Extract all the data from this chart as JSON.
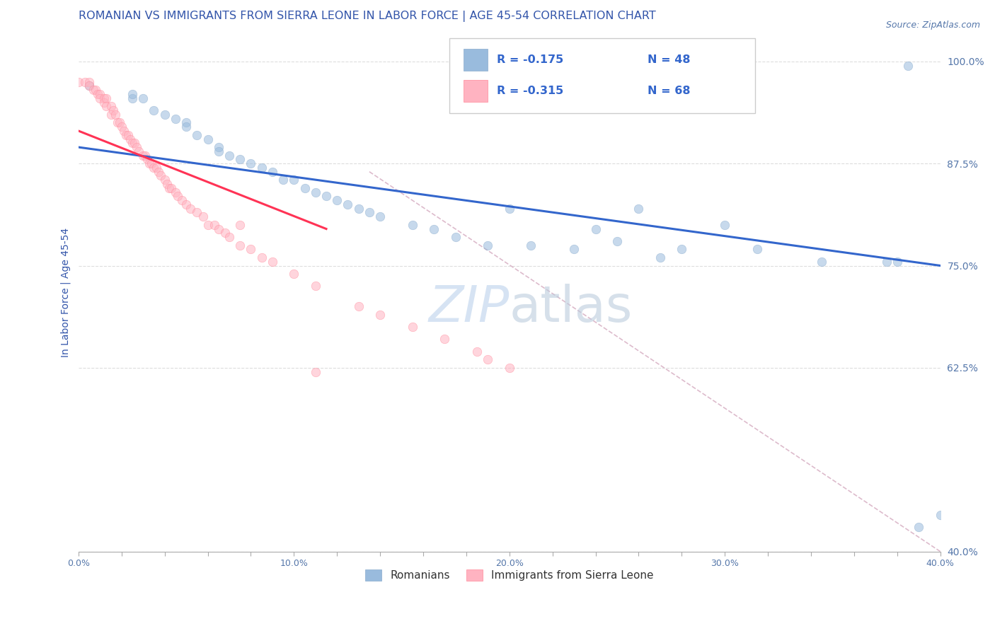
{
  "title": "ROMANIAN VS IMMIGRANTS FROM SIERRA LEONE IN LABOR FORCE | AGE 45-54 CORRELATION CHART",
  "source_text": "Source: ZipAtlas.com",
  "ylabel": "In Labor Force | Age 45-54",
  "xlim": [
    0.0,
    0.4
  ],
  "ylim": [
    0.4,
    1.035
  ],
  "xtick_labels": [
    "0.0%",
    "",
    "",
    "",
    "",
    "10.0%",
    "",
    "",
    "",
    "",
    "20.0%",
    "",
    "",
    "",
    "",
    "30.0%",
    "",
    "",
    "",
    "",
    "40.0%"
  ],
  "xtick_values": [
    0.0,
    0.02,
    0.04,
    0.06,
    0.08,
    0.1,
    0.12,
    0.14,
    0.16,
    0.18,
    0.2,
    0.22,
    0.24,
    0.26,
    0.28,
    0.3,
    0.32,
    0.34,
    0.36,
    0.38,
    0.4
  ],
  "ytick_labels": [
    "40.0%",
    "62.5%",
    "75.0%",
    "87.5%",
    "100.0%"
  ],
  "ytick_values": [
    0.4,
    0.625,
    0.75,
    0.875,
    1.0
  ],
  "blue_scatter_x": [
    0.005,
    0.025,
    0.025,
    0.03,
    0.035,
    0.04,
    0.045,
    0.05,
    0.05,
    0.055,
    0.06,
    0.065,
    0.065,
    0.07,
    0.075,
    0.08,
    0.085,
    0.09,
    0.095,
    0.1,
    0.105,
    0.11,
    0.115,
    0.12,
    0.125,
    0.13,
    0.135,
    0.14,
    0.155,
    0.165,
    0.175,
    0.19,
    0.21,
    0.23,
    0.25,
    0.27,
    0.315,
    0.345,
    0.375,
    0.385,
    0.39,
    0.2,
    0.24,
    0.26,
    0.28,
    0.3,
    0.38,
    0.4
  ],
  "blue_scatter_y": [
    0.97,
    0.955,
    0.96,
    0.955,
    0.94,
    0.935,
    0.93,
    0.925,
    0.92,
    0.91,
    0.905,
    0.895,
    0.89,
    0.885,
    0.88,
    0.875,
    0.87,
    0.865,
    0.855,
    0.855,
    0.845,
    0.84,
    0.835,
    0.83,
    0.825,
    0.82,
    0.815,
    0.81,
    0.8,
    0.795,
    0.785,
    0.775,
    0.775,
    0.77,
    0.78,
    0.76,
    0.77,
    0.755,
    0.755,
    0.995,
    0.43,
    0.82,
    0.795,
    0.82,
    0.77,
    0.8,
    0.755,
    0.445
  ],
  "pink_scatter_x": [
    0.0,
    0.003,
    0.005,
    0.005,
    0.007,
    0.008,
    0.009,
    0.01,
    0.01,
    0.012,
    0.012,
    0.013,
    0.013,
    0.015,
    0.015,
    0.016,
    0.017,
    0.018,
    0.019,
    0.02,
    0.021,
    0.022,
    0.023,
    0.024,
    0.025,
    0.026,
    0.027,
    0.028,
    0.03,
    0.031,
    0.032,
    0.033,
    0.034,
    0.035,
    0.036,
    0.037,
    0.038,
    0.04,
    0.041,
    0.042,
    0.043,
    0.045,
    0.046,
    0.048,
    0.05,
    0.052,
    0.055,
    0.058,
    0.06,
    0.063,
    0.065,
    0.068,
    0.07,
    0.075,
    0.08,
    0.085,
    0.09,
    0.1,
    0.11,
    0.13,
    0.14,
    0.155,
    0.17,
    0.185,
    0.19,
    0.2,
    0.11,
    0.075
  ],
  "pink_scatter_y": [
    0.975,
    0.975,
    0.975,
    0.97,
    0.965,
    0.965,
    0.96,
    0.96,
    0.955,
    0.955,
    0.95,
    0.955,
    0.945,
    0.945,
    0.935,
    0.94,
    0.935,
    0.925,
    0.925,
    0.92,
    0.915,
    0.91,
    0.91,
    0.905,
    0.9,
    0.9,
    0.895,
    0.89,
    0.885,
    0.885,
    0.88,
    0.875,
    0.875,
    0.87,
    0.87,
    0.865,
    0.86,
    0.855,
    0.85,
    0.845,
    0.845,
    0.84,
    0.835,
    0.83,
    0.825,
    0.82,
    0.815,
    0.81,
    0.8,
    0.8,
    0.795,
    0.79,
    0.785,
    0.775,
    0.77,
    0.76,
    0.755,
    0.74,
    0.725,
    0.7,
    0.69,
    0.675,
    0.66,
    0.645,
    0.635,
    0.625,
    0.62,
    0.8
  ],
  "blue_line_x": [
    0.0,
    0.4
  ],
  "blue_line_y": [
    0.895,
    0.75
  ],
  "pink_line_x": [
    0.0,
    0.115
  ],
  "pink_line_y": [
    0.915,
    0.795
  ],
  "diagonal_line_x": [
    0.135,
    0.4
  ],
  "diagonal_line_y": [
    0.865,
    0.4
  ],
  "blue_color": "#99BBDD",
  "pink_color": "#FFB3C1",
  "blue_line_color": "#3366CC",
  "pink_line_color": "#FF3355",
  "diagonal_color": "#DDBBCC",
  "watermark_color": "#CCDDF0",
  "legend_R1": "R = -0.175",
  "legend_N1": "N = 48",
  "legend_R2": "R = -0.315",
  "legend_N2": "N = 68",
  "legend_label1": "Romanians",
  "legend_label2": "Immigrants from Sierra Leone",
  "title_color": "#3355AA",
  "axis_label_color": "#3355AA",
  "tick_color": "#5577AA",
  "source_color": "#5577AA",
  "marker_size": 9,
  "marker_alpha": 0.55,
  "title_fontsize": 11.5,
  "ylabel_fontsize": 10
}
